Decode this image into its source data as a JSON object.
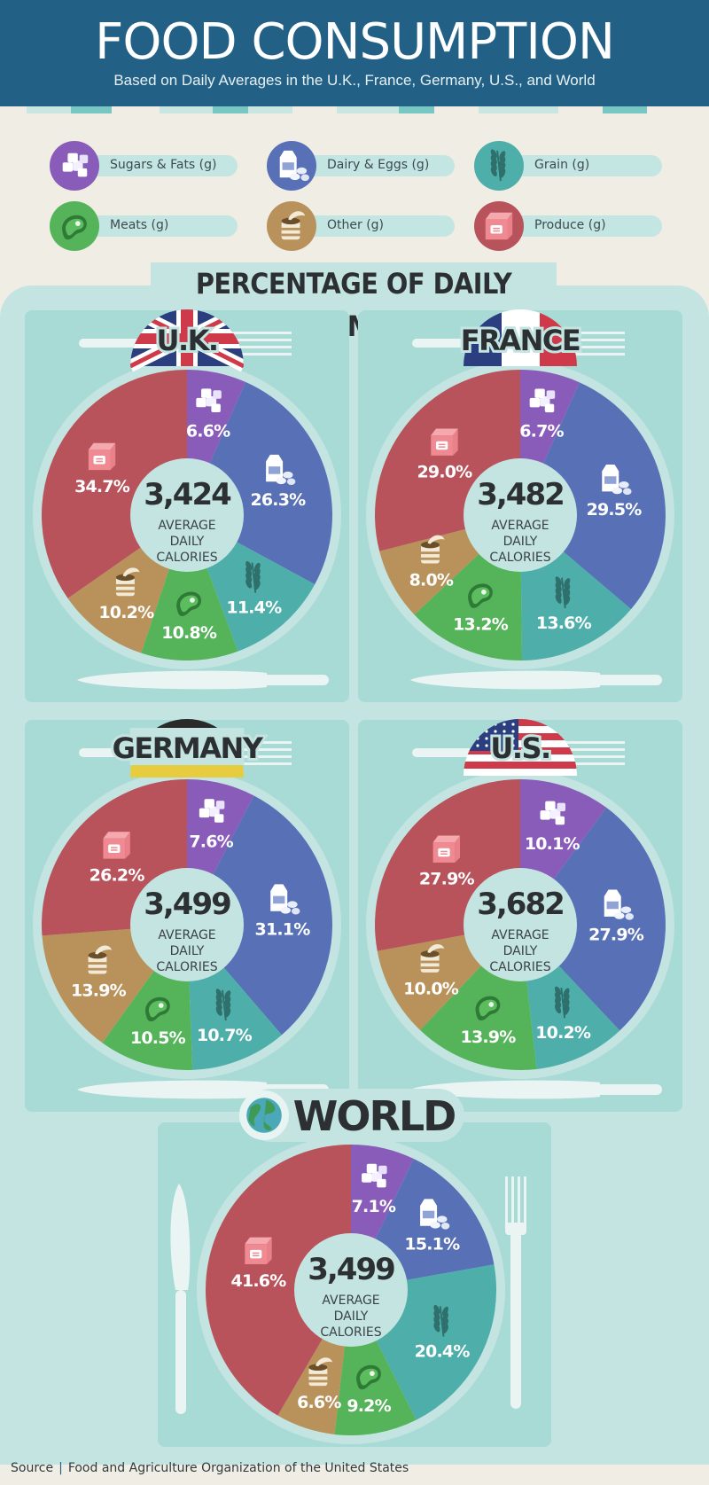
{
  "header": {
    "title": "FOOD CONSUMPTION",
    "subtitle": "Based on Daily Averages in the U.K., France, Germany, U.S., and World"
  },
  "legend": [
    {
      "label": "Sugars & Fats (g)",
      "color": "#8a5cba",
      "icon": "sugar-cubes-icon"
    },
    {
      "label": "Dairy & Eggs (g)",
      "color": "#5870b6",
      "icon": "milk-carton-icon"
    },
    {
      "label": "Grain (g)",
      "color": "#4eaeaa",
      "icon": "wheat-icon"
    },
    {
      "label": "Meats (g)",
      "color": "#55b45a",
      "icon": "steak-icon"
    },
    {
      "label": "Other (g)",
      "color": "#b8925a",
      "icon": "can-icon"
    },
    {
      "label": "Produce (g)",
      "color": "#b8535b",
      "icon": "produce-box-icon"
    }
  ],
  "section_title": "PERCENTAGE OF DAILY CONSUMPTION",
  "center_label": [
    "AVERAGE",
    "DAILY",
    "CALORIES"
  ],
  "chart_data": [
    {
      "type": "pie",
      "title": "U.K.",
      "calories": "3,424",
      "categories": [
        "Sugars & Fats",
        "Dairy & Eggs",
        "Grain",
        "Meats",
        "Other",
        "Produce"
      ],
      "values": [
        6.6,
        26.3,
        11.4,
        10.8,
        10.2,
        34.7
      ],
      "labels": [
        "6.6%",
        "26.3%",
        "11.4%",
        "10.8%",
        "10.2%",
        "34.7%"
      ]
    },
    {
      "type": "pie",
      "title": "FRANCE",
      "calories": "3,482",
      "categories": [
        "Sugars & Fats",
        "Dairy & Eggs",
        "Grain",
        "Meats",
        "Other",
        "Produce"
      ],
      "values": [
        6.7,
        29.5,
        13.6,
        13.2,
        8.0,
        29.0
      ],
      "labels": [
        "6.7%",
        "29.5%",
        "13.6%",
        "13.2%",
        "8.0%",
        "29.0%"
      ]
    },
    {
      "type": "pie",
      "title": "GERMANY",
      "calories": "3,499",
      "categories": [
        "Sugars & Fats",
        "Dairy & Eggs",
        "Grain",
        "Meats",
        "Other",
        "Produce"
      ],
      "values": [
        7.6,
        31.1,
        10.7,
        10.5,
        13.9,
        26.2
      ],
      "labels": [
        "7.6%",
        "31.1%",
        "10.7%",
        "10.5%",
        "13.9%",
        "26.2%"
      ]
    },
    {
      "type": "pie",
      "title": "U.S.",
      "calories": "3,682",
      "categories": [
        "Sugars & Fats",
        "Dairy & Eggs",
        "Grain",
        "Meats",
        "Other",
        "Produce"
      ],
      "values": [
        10.1,
        27.9,
        10.2,
        13.9,
        10.0,
        27.9
      ],
      "labels": [
        "10.1%",
        "27.9%",
        "10.2%",
        "13.9%",
        "10.0%",
        "27.9%"
      ]
    },
    {
      "type": "pie",
      "title": "WORLD",
      "calories": "3,499",
      "categories": [
        "Sugars & Fats",
        "Dairy & Eggs",
        "Grain",
        "Meats",
        "Other",
        "Produce"
      ],
      "values": [
        7.1,
        15.1,
        20.4,
        9.2,
        6.6,
        41.6
      ],
      "labels": [
        "7.1%",
        "15.1%",
        "20.4%",
        "9.2%",
        "6.6%",
        "41.6%"
      ]
    }
  ],
  "footer": {
    "source_label": "Source",
    "source_text": "Food and Agriculture Organization of the United States"
  }
}
